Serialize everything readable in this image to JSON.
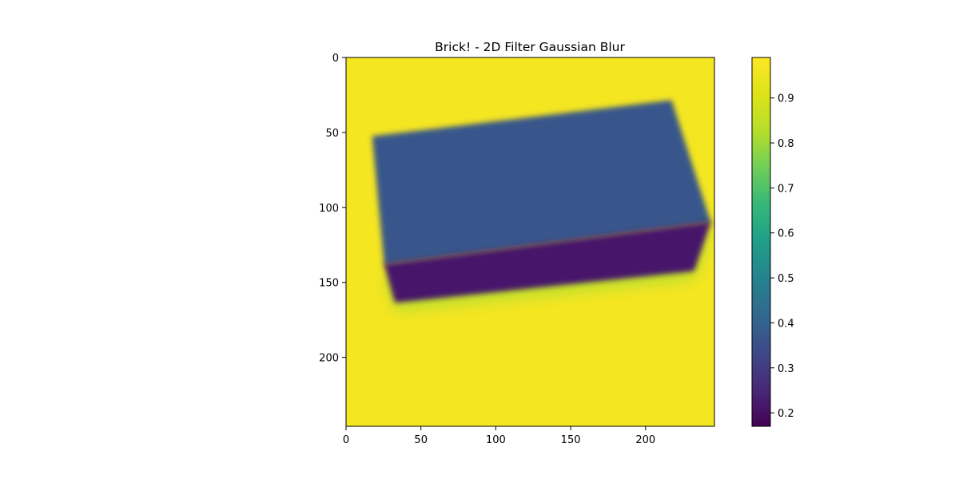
{
  "chart_data": {
    "type": "heatmap",
    "title": "Brick! - 2D Filter Gaussian Blur",
    "xlabel": "",
    "ylabel": "",
    "image_width": 246,
    "image_height": 246,
    "xlim": [
      0,
      246
    ],
    "ylim": [
      246,
      0
    ],
    "x_ticks": [
      0,
      50,
      100,
      150,
      200
    ],
    "y_ticks": [
      0,
      50,
      100,
      150,
      200
    ],
    "colormap": "viridis",
    "colorbar": {
      "range": [
        0.17,
        0.99
      ],
      "ticks": [
        0.2,
        0.3,
        0.4,
        0.5,
        0.6,
        0.7,
        0.8,
        0.9
      ]
    },
    "background_value": 0.97,
    "regions": [
      {
        "name": "brick top face",
        "value": 0.37,
        "corners": [
          [
            18,
            53
          ],
          [
            217,
            29
          ],
          [
            243,
            110
          ],
          [
            26,
            138
          ]
        ]
      },
      {
        "name": "brick front face",
        "value": 0.22,
        "corners": [
          [
            26,
            138
          ],
          [
            243,
            110
          ],
          [
            232,
            142
          ],
          [
            33,
            163
          ]
        ]
      }
    ],
    "grid": false,
    "legend": "none"
  }
}
